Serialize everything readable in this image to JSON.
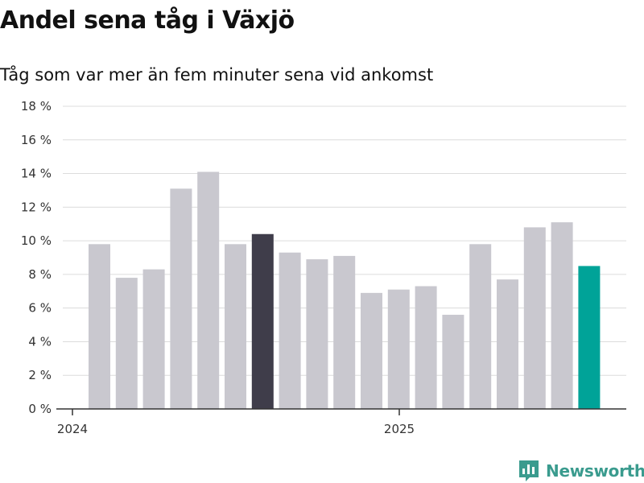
{
  "header": {
    "title": "Andel sena tåg i Växjö",
    "subtitle": "Tåg som var mer än fem minuter sena vid ankomst"
  },
  "brand": {
    "name": "Newsworthy",
    "icon": "newsworthy-logo-icon",
    "color": "#3a9b8e"
  },
  "colors": {
    "bar_default": "#c9c8cf",
    "bar_highlight": "#3f3d4a",
    "bar_latest": "#00a398",
    "grid": "#dcdcdc",
    "axis": "#333333"
  },
  "chart_data": {
    "type": "bar",
    "title": "Andel sena tåg i Växjö",
    "subtitle": "Tåg som var mer än fem minuter sena vid ankomst",
    "xlabel": "",
    "ylabel": "",
    "x_tick_labels": [
      "2024",
      "2025"
    ],
    "y_ticks": [
      0,
      2,
      4,
      6,
      8,
      10,
      12,
      14,
      16,
      18
    ],
    "y_tick_labels": [
      "0 %",
      "2 %",
      "4 %",
      "6 %",
      "8 %",
      "10 %",
      "12 %",
      "14 %",
      "16 %",
      "18 %"
    ],
    "ylim": [
      0,
      18
    ],
    "grid": true,
    "categories": [
      "2024-01",
      "2024-02",
      "2024-03",
      "2024-04",
      "2024-05",
      "2024-06",
      "2024-07",
      "2024-08",
      "2024-09",
      "2024-10",
      "2024-11",
      "2024-12",
      "2025-01",
      "2025-02",
      "2025-03",
      "2025-04",
      "2025-05",
      "2025-06",
      "2025-07"
    ],
    "values": [
      9.8,
      7.8,
      8.3,
      13.1,
      14.1,
      9.8,
      10.4,
      9.3,
      8.9,
      9.1,
      6.9,
      7.1,
      7.3,
      5.6,
      9.8,
      7.7,
      10.8,
      11.1,
      8.5
    ],
    "highlight_index": 6,
    "latest_index": 18
  }
}
